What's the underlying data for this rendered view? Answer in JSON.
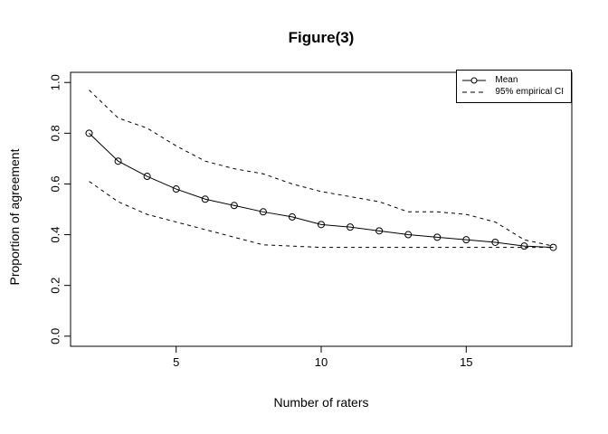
{
  "figure": {
    "background_color": "#ffffff",
    "line_color": "#000000"
  },
  "chart_data": {
    "type": "line",
    "title": "Figure(3)",
    "xlabel": "Number of raters",
    "ylabel": "Proportion of agreement",
    "xlim": [
      2,
      18
    ],
    "ylim": [
      0,
      1
    ],
    "x_ticks": [
      "5",
      "10",
      "15"
    ],
    "y_ticks": [
      "0.0",
      "0.2",
      "0.4",
      "0.6",
      "0.8",
      "1.0"
    ],
    "grid": false,
    "legend_position": "top-right",
    "x": [
      2,
      3,
      4,
      5,
      6,
      7,
      8,
      9,
      10,
      11,
      12,
      13,
      14,
      15,
      16,
      17,
      18
    ],
    "series": [
      {
        "name": "Mean",
        "line_style": "solid",
        "marker": "open-circle",
        "values": [
          0.8,
          0.69,
          0.63,
          0.58,
          0.54,
          0.515,
          0.49,
          0.47,
          0.44,
          0.43,
          0.415,
          0.4,
          0.39,
          0.38,
          0.37,
          0.355,
          0.35
        ]
      },
      {
        "name": "95% empirical CI (upper)",
        "line_style": "dashed",
        "marker": "none",
        "values": [
          0.97,
          0.86,
          0.82,
          0.75,
          0.69,
          0.66,
          0.64,
          0.6,
          0.57,
          0.55,
          0.53,
          0.49,
          0.49,
          0.48,
          0.45,
          0.38,
          0.355
        ]
      },
      {
        "name": "95% empirical CI (lower)",
        "line_style": "dashed",
        "marker": "none",
        "values": [
          0.61,
          0.53,
          0.48,
          0.45,
          0.42,
          0.39,
          0.36,
          0.355,
          0.35,
          0.35,
          0.35,
          0.35,
          0.35,
          0.35,
          0.35,
          0.35,
          0.35
        ]
      }
    ],
    "legend": [
      {
        "label": "Mean",
        "line": "solid",
        "marker": "open-circle"
      },
      {
        "label": "95% empirical CI",
        "line": "dashed",
        "marker": "none"
      }
    ]
  }
}
